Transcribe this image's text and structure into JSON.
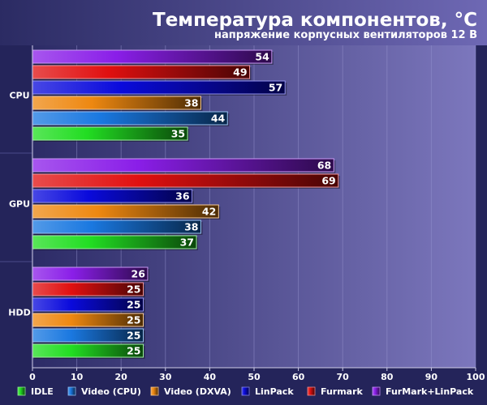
{
  "chart_data": {
    "type": "bar",
    "orientation": "horizontal",
    "title": "Температура компонентов, °C",
    "subtitle": "напряжение корпусных вентиляторов 12 В",
    "categories": [
      "CPU",
      "GPU",
      "HDD"
    ],
    "series": [
      {
        "name": "IDLE",
        "color": "#22dd22",
        "values": [
          35,
          37,
          25
        ]
      },
      {
        "name": "Video (CPU)",
        "color": "#1a78e0",
        "values": [
          44,
          38,
          25
        ]
      },
      {
        "name": "Video (DXVA)",
        "color": "#ee8811",
        "values": [
          38,
          42,
          25
        ]
      },
      {
        "name": "LinPack",
        "color": "#0a0adc",
        "values": [
          57,
          36,
          25
        ]
      },
      {
        "name": "Furmark",
        "color": "#e01010",
        "values": [
          49,
          69,
          25
        ]
      },
      {
        "name": "FurMark+LinPack",
        "color": "#8a1ee8",
        "values": [
          54,
          68,
          26
        ]
      }
    ],
    "xlim": [
      0,
      100
    ],
    "xticks": [
      0,
      10,
      20,
      30,
      40,
      50,
      60,
      70,
      80,
      90,
      100
    ],
    "grid": true,
    "legend_position": "bottom"
  }
}
